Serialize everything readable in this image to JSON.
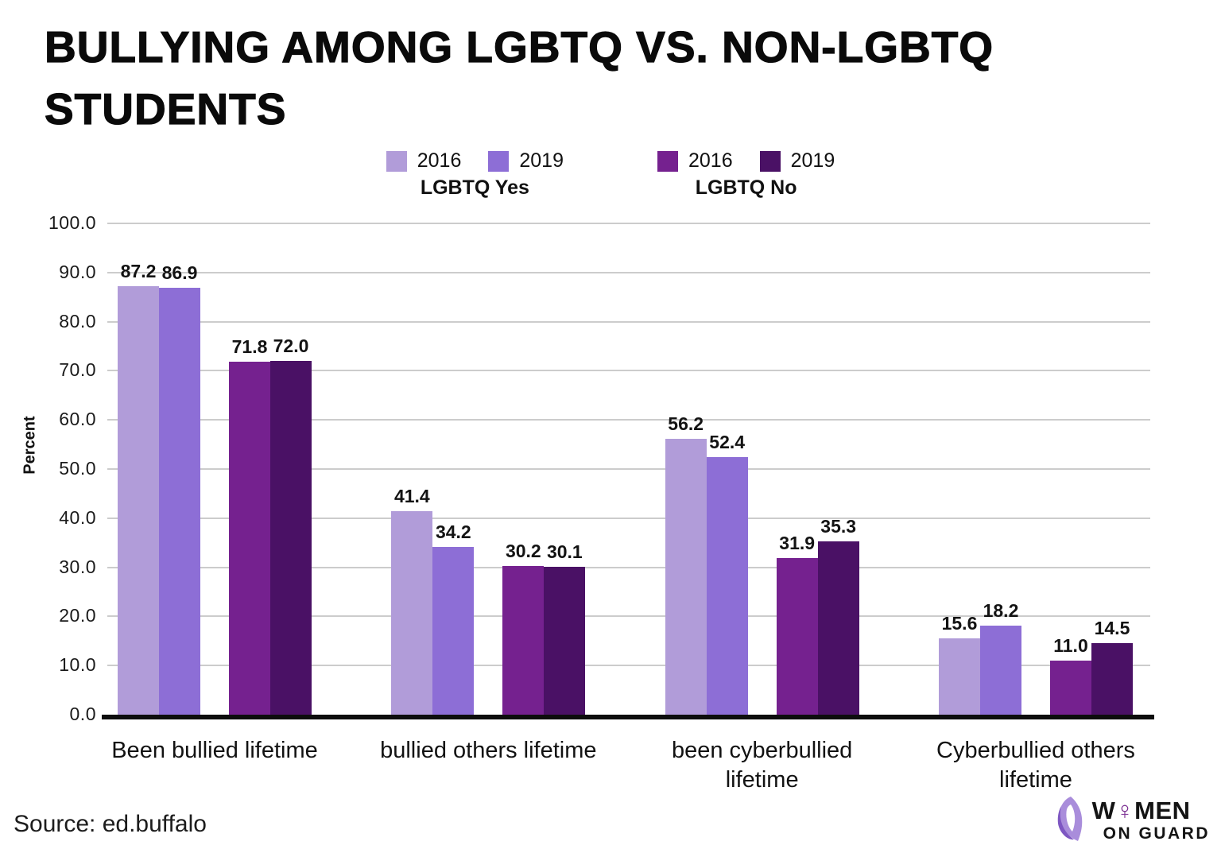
{
  "title": {
    "line1": "BULLYING AMONG LGBTQ VS. NON-LGBTQ",
    "line2": "STUDENTS"
  },
  "legend": {
    "groups": [
      {
        "caption": "LGBTQ Yes",
        "items": [
          {
            "label": "2016",
            "color": "#b19cd9"
          },
          {
            "label": "2019",
            "color": "#8d6ed6"
          }
        ]
      },
      {
        "caption": "LGBTQ No",
        "items": [
          {
            "label": "2016",
            "color": "#75218f"
          },
          {
            "label": "2019",
            "color": "#4a1165"
          }
        ]
      }
    ]
  },
  "chart_data": {
    "type": "bar",
    "title": "BULLYING AMONG LGBTQ VS. NON-LGBTQ STUDENTS",
    "categories": [
      "Been bullied lifetime",
      "bullied others lifetime",
      "been cyberbullied lifetime",
      "Cyberbullied others lifetime"
    ],
    "category_label_lines": [
      [
        "Been bullied lifetime"
      ],
      [
        "bullied others lifetime"
      ],
      [
        "been cyberbullied",
        "lifetime"
      ],
      [
        "Cyberbullied others",
        "lifetime"
      ]
    ],
    "series": [
      {
        "name": "LGBTQ Yes 2016",
        "color": "#b19cd9",
        "values": [
          87.2,
          41.4,
          56.2,
          15.6
        ]
      },
      {
        "name": "LGBTQ Yes 2019",
        "color": "#8d6ed6",
        "values": [
          86.9,
          34.2,
          52.4,
          18.2
        ]
      },
      {
        "name": "LGBTQ No 2016",
        "color": "#75218f",
        "values": [
          71.8,
          30.2,
          31.9,
          11.0
        ]
      },
      {
        "name": "LGBTQ No 2019",
        "color": "#4a1165",
        "values": [
          72.0,
          30.1,
          35.3,
          14.5
        ]
      }
    ],
    "xlabel": "",
    "ylabel": "Percent",
    "ylim": [
      0,
      100
    ],
    "ytick_step": 10,
    "yticks": [
      "100.0",
      "90.0",
      "80.0",
      "70.0",
      "60.0",
      "50.0",
      "40.0",
      "30.0",
      "20.0",
      "10.0",
      "0.0"
    ],
    "grid": true,
    "legend_position": "top",
    "value_labels": true,
    "value_label_decimals": 1
  },
  "colors": {
    "grid": "#cccccc",
    "axis": "#0d0d0d",
    "text": "#111111"
  },
  "source": {
    "text": "Source: ed.buffalo"
  },
  "logo": {
    "line1": "WOMEN",
    "line2": "ON GUARD",
    "venus_symbol": "♀",
    "accent": "#7b2f92"
  }
}
